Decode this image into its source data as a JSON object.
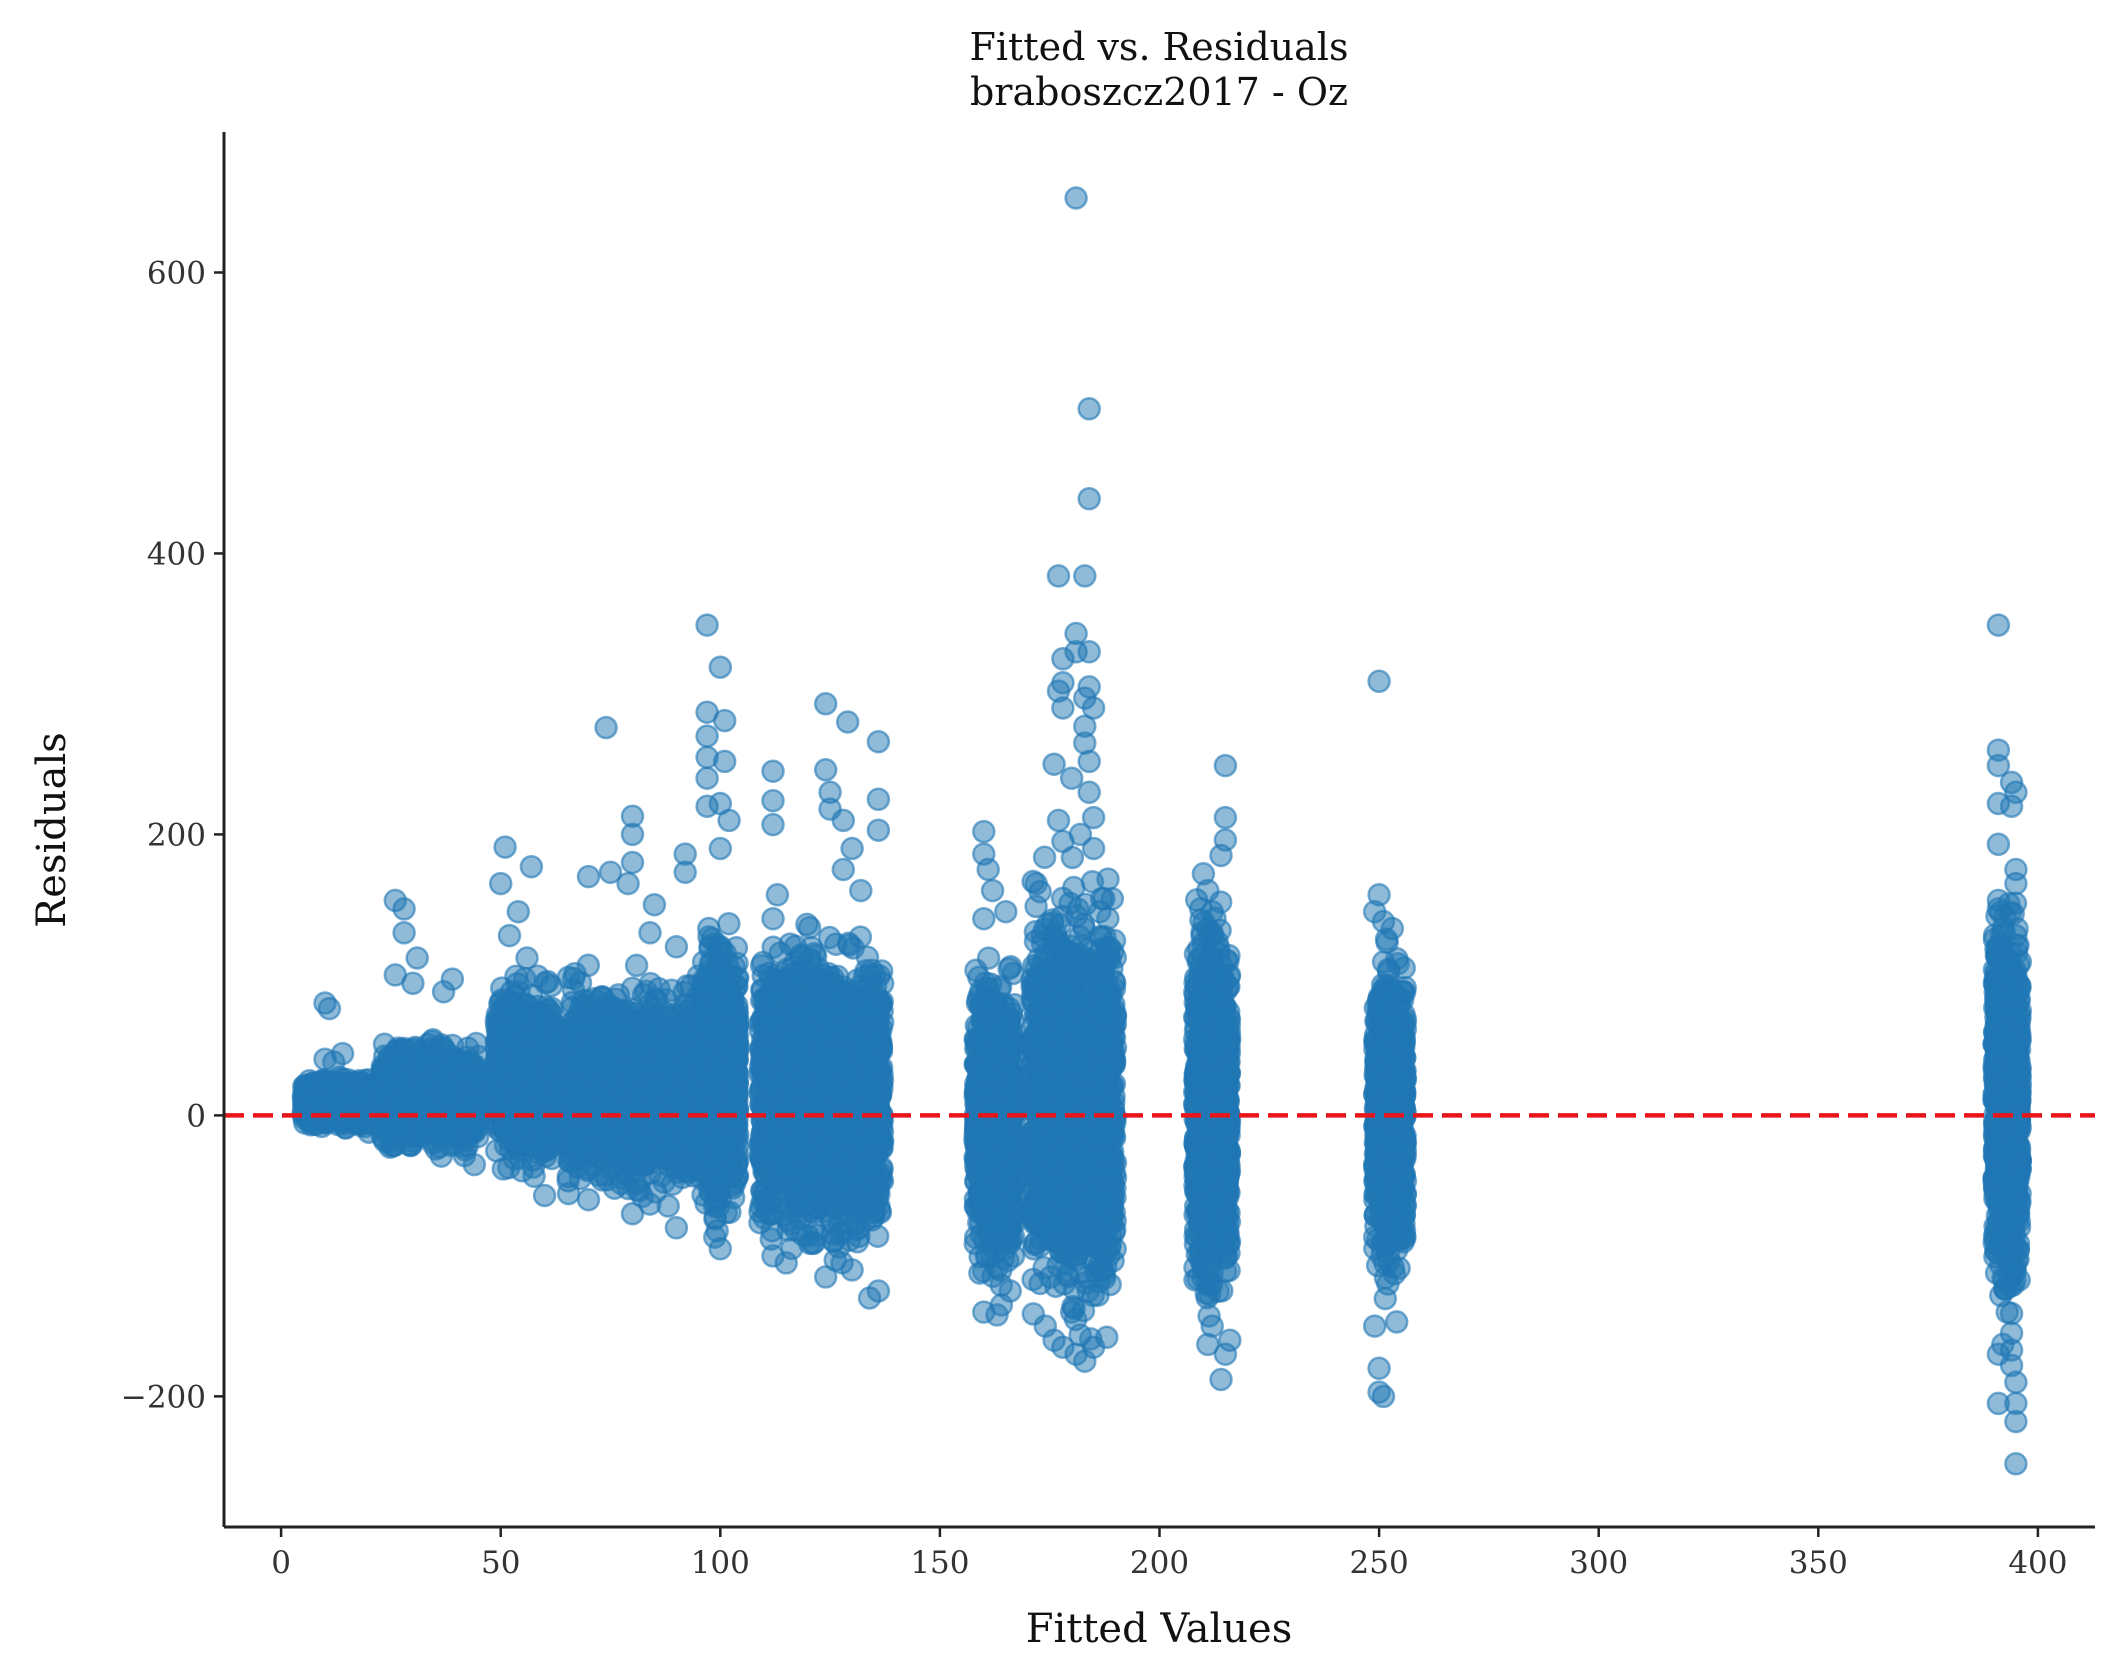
{
  "chart_data": {
    "type": "scatter",
    "title": "Fitted vs. Residuals",
    "subtitle": "braboszcz2017 - Oz",
    "xlabel": "Fitted Values",
    "ylabel": "Residuals",
    "xlim": [
      -13,
      413
    ],
    "ylim": [
      -293,
      700
    ],
    "xticks": [
      0,
      50,
      100,
      150,
      200,
      250,
      300,
      350,
      400
    ],
    "yticks": [
      -200,
      0,
      200,
      400,
      600
    ],
    "xtick_labels": [
      "0",
      "50",
      "100",
      "150",
      "200",
      "250",
      "300",
      "350",
      "400"
    ],
    "ytick_labels": [
      "−200",
      "0",
      "200",
      "400",
      "600"
    ],
    "grid": false,
    "reference_line": {
      "y": 0,
      "style": "dashed",
      "color": "#e8151b"
    },
    "marker_color": "#1f77b4",
    "marker_alpha": 0.5,
    "clusters": [
      {
        "x": [
          5,
          23
        ],
        "ylow": -12,
        "yhigh": 30
      },
      {
        "x": [
          23,
          45
        ],
        "ylow": -35,
        "yhigh": 60
      },
      {
        "x": [
          49,
          62
        ],
        "ylow": -55,
        "yhigh": 110
      },
      {
        "x": [
          65,
          98
        ],
        "ylow": -70,
        "yhigh": 110
      },
      {
        "x": [
          96,
          104
        ],
        "ylow": -95,
        "yhigh": 150
      },
      {
        "x": [
          109,
          137
        ],
        "ylow": -120,
        "yhigh": 150
      },
      {
        "x": [
          158,
          167
        ],
        "ylow": -140,
        "yhigh": 130
      },
      {
        "x": [
          171,
          190
        ],
        "ylow": -170,
        "yhigh": 190
      },
      {
        "x": [
          208,
          216
        ],
        "ylow": -160,
        "yhigh": 170
      },
      {
        "x": [
          249,
          256
        ],
        "ylow": -140,
        "yhigh": 140
      },
      {
        "x": [
          390,
          396
        ],
        "ylow": -160,
        "yhigh": 180
      }
    ],
    "points": [
      [
        10,
        80
      ],
      [
        11,
        76
      ],
      [
        14,
        44
      ],
      [
        10,
        40
      ],
      [
        12,
        38
      ],
      [
        26,
        153
      ],
      [
        28,
        147
      ],
      [
        28,
        130
      ],
      [
        26,
        100
      ],
      [
        31,
        112
      ],
      [
        30,
        94
      ],
      [
        39,
        97
      ],
      [
        37,
        88
      ],
      [
        51,
        191
      ],
      [
        50,
        165
      ],
      [
        54,
        145
      ],
      [
        57,
        177
      ],
      [
        52,
        128
      ],
      [
        56,
        112
      ],
      [
        70,
        170
      ],
      [
        74,
        276
      ],
      [
        75,
        173
      ],
      [
        80,
        213
      ],
      [
        80,
        200
      ],
      [
        80,
        180
      ],
      [
        79,
        165
      ],
      [
        85,
        150
      ],
      [
        84,
        130
      ],
      [
        90,
        120
      ],
      [
        92,
        186
      ],
      [
        92,
        173
      ],
      [
        97,
        349
      ],
      [
        97,
        287
      ],
      [
        97,
        270
      ],
      [
        97,
        255
      ],
      [
        97,
        240
      ],
      [
        97,
        220
      ],
      [
        100,
        319
      ],
      [
        101,
        281
      ],
      [
        101,
        252
      ],
      [
        100,
        222
      ],
      [
        102,
        210
      ],
      [
        100,
        190
      ],
      [
        112,
        245
      ],
      [
        112,
        224
      ],
      [
        112,
        207
      ],
      [
        113,
        157
      ],
      [
        112,
        140
      ],
      [
        124,
        293
      ],
      [
        124,
        246
      ],
      [
        125,
        230
      ],
      [
        125,
        218
      ],
      [
        129,
        280
      ],
      [
        128,
        210
      ],
      [
        130,
        190
      ],
      [
        136,
        266
      ],
      [
        136,
        225
      ],
      [
        136,
        203
      ],
      [
        128,
        175
      ],
      [
        132,
        160
      ],
      [
        160,
        202
      ],
      [
        160,
        186
      ],
      [
        161,
        175
      ],
      [
        162,
        160
      ],
      [
        160,
        140
      ],
      [
        165,
        145
      ],
      [
        177,
        384
      ],
      [
        183,
        384
      ],
      [
        181,
        343
      ],
      [
        181,
        330
      ],
      [
        178,
        325
      ],
      [
        184,
        330
      ],
      [
        178,
        308
      ],
      [
        177,
        302
      ],
      [
        184,
        305
      ],
      [
        183,
        297
      ],
      [
        178,
        290
      ],
      [
        185,
        290
      ],
      [
        183,
        277
      ],
      [
        183,
        265
      ],
      [
        184,
        252
      ],
      [
        176,
        250
      ],
      [
        180,
        240
      ],
      [
        184,
        230
      ],
      [
        185,
        212
      ],
      [
        177,
        210
      ],
      [
        182,
        200
      ],
      [
        178,
        195
      ],
      [
        185,
        190
      ],
      [
        181,
        653
      ],
      [
        184,
        503
      ],
      [
        184,
        439
      ],
      [
        215,
        249
      ],
      [
        215,
        212
      ],
      [
        215,
        196
      ],
      [
        214,
        185
      ],
      [
        210,
        172
      ],
      [
        211,
        160
      ],
      [
        212,
        145
      ],
      [
        250,
        309
      ],
      [
        250,
        157
      ],
      [
        249,
        145
      ],
      [
        251,
        138
      ],
      [
        253,
        133
      ],
      [
        391,
        349
      ],
      [
        391,
        260
      ],
      [
        391,
        249
      ],
      [
        391,
        222
      ],
      [
        391,
        193
      ],
      [
        394,
        237
      ],
      [
        395,
        230
      ],
      [
        394,
        220
      ],
      [
        395,
        175
      ],
      [
        395,
        165
      ],
      [
        391,
        153
      ],
      [
        391,
        147
      ],
      [
        395,
        128
      ],
      [
        391,
        120
      ],
      [
        10,
        -5
      ],
      [
        20,
        -12
      ],
      [
        44,
        -35
      ],
      [
        60,
        -57
      ],
      [
        70,
        -60
      ],
      [
        80,
        -70
      ],
      [
        90,
        -80
      ],
      [
        100,
        -95
      ],
      [
        112,
        -100
      ],
      [
        115,
        -105
      ],
      [
        124,
        -115
      ],
      [
        130,
        -110
      ],
      [
        136,
        -125
      ],
      [
        134,
        -130
      ],
      [
        160,
        -140
      ],
      [
        163,
        -142
      ],
      [
        164,
        -135
      ],
      [
        166,
        -125
      ],
      [
        174,
        -150
      ],
      [
        176,
        -160
      ],
      [
        178,
        -165
      ],
      [
        181,
        -170
      ],
      [
        183,
        -175
      ],
      [
        185,
        -165
      ],
      [
        188,
        -158
      ],
      [
        180,
        -140
      ],
      [
        186,
        -128
      ],
      [
        212,
        -150
      ],
      [
        211,
        -163
      ],
      [
        215,
        -170
      ],
      [
        214,
        -188
      ],
      [
        216,
        -160
      ],
      [
        250,
        -180
      ],
      [
        250,
        -197
      ],
      [
        251,
        -200
      ],
      [
        249,
        -150
      ],
      [
        254,
        -147
      ],
      [
        252,
        -120
      ],
      [
        392,
        -163
      ],
      [
        391,
        -170
      ],
      [
        391,
        -205
      ],
      [
        394,
        -167
      ],
      [
        394,
        -178
      ],
      [
        395,
        -190
      ],
      [
        395,
        -205
      ],
      [
        395,
        -218
      ],
      [
        395,
        -248
      ],
      [
        394,
        -155
      ],
      [
        393,
        -140
      ]
    ]
  }
}
